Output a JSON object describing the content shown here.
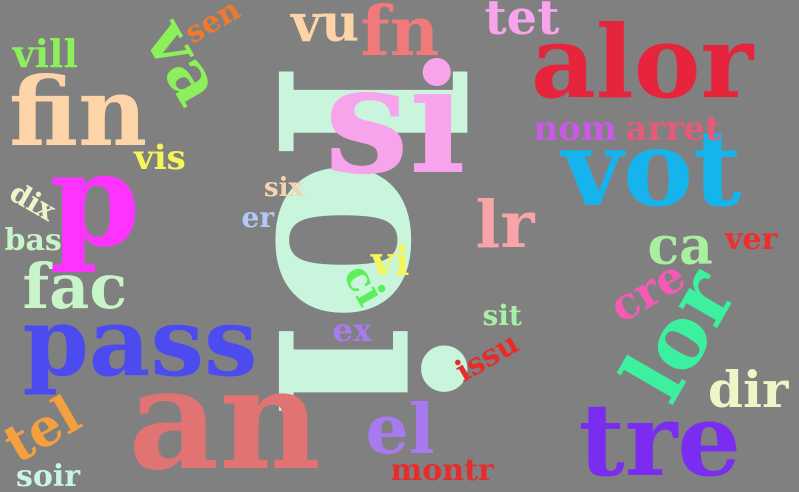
{
  "background": "#808080",
  "words": [
    {
      "text": "loi",
      "color": "#c8f5dc",
      "rot": 90
    },
    {
      "text": "si",
      "color": "#f8a4ec",
      "rot": 0
    },
    {
      "text": "an",
      "color": "#e27373",
      "rot": 0
    },
    {
      "text": "p",
      "color": "#ff33ff",
      "rot": 0
    },
    {
      "text": "alor",
      "color": "#e6243c",
      "rot": 0
    },
    {
      "text": "vot",
      "color": "#16b4ec",
      "rot": 0
    },
    {
      "text": "pass",
      "color": "#4b4bf0",
      "rot": 0
    },
    {
      "text": "fin",
      "color": "#fdd4a8",
      "rot": 0
    },
    {
      "text": "tre",
      "color": "#7a2cf0",
      "rot": 0
    },
    {
      "text": "lor",
      "color": "#3cf0a0",
      "rot": -60
    },
    {
      "text": "el",
      "color": "#a87af0",
      "rot": 0
    },
    {
      "text": "va",
      "color": "#8cf05a",
      "rot": 60
    },
    {
      "text": "fn",
      "color": "#f07a7a",
      "rot": 0
    },
    {
      "text": "vu",
      "color": "#fdd4a8",
      "rot": 0
    },
    {
      "text": "tet",
      "color": "#f8a4ec",
      "rot": 0
    },
    {
      "text": "lr",
      "color": "#f8a4a8",
      "rot": 0
    },
    {
      "text": "fac",
      "color": "#c8f5c8",
      "rot": 0
    },
    {
      "text": "ca",
      "color": "#a8f0a0",
      "rot": 0
    },
    {
      "text": "dir",
      "color": "#f0f5c8",
      "rot": 0
    },
    {
      "text": "tel",
      "color": "#f5a040",
      "rot": -30
    },
    {
      "text": "vill",
      "color": "#8cf05a",
      "rot": 0
    },
    {
      "text": "nom",
      "color": "#c85ae6",
      "rot": 0
    },
    {
      "text": "arret",
      "color": "#e65a7a",
      "rot": 0
    },
    {
      "text": "ver",
      "color": "#f02c2c",
      "rot": 0
    },
    {
      "text": "cre",
      "color": "#f55ab4",
      "rot": -30
    },
    {
      "text": "vi",
      "color": "#f5f55a",
      "rot": 0
    },
    {
      "text": "ci",
      "color": "#5af05a",
      "rot": 60
    },
    {
      "text": "ex",
      "color": "#a87af0",
      "rot": 0
    },
    {
      "text": "sit",
      "color": "#a8f0a8",
      "rot": 0
    },
    {
      "text": "issu",
      "color": "#e62c2c",
      "rot": -30
    },
    {
      "text": "montr",
      "color": "#e62c2c",
      "rot": 0
    },
    {
      "text": "soir",
      "color": "#c8f5e6",
      "rot": 0
    },
    {
      "text": "vis",
      "color": "#f5f55a",
      "rot": 0
    },
    {
      "text": "dix",
      "color": "#f0f5c8",
      "rot": 30
    },
    {
      "text": "bas",
      "color": "#c8f5c8",
      "rot": 0
    },
    {
      "text": "six",
      "color": "#f5d4b4",
      "rot": 0
    },
    {
      "text": "er",
      "color": "#b4c8f5",
      "rot": 0
    },
    {
      "text": "sen",
      "color": "#f07a2c",
      "rot": -30
    }
  ]
}
